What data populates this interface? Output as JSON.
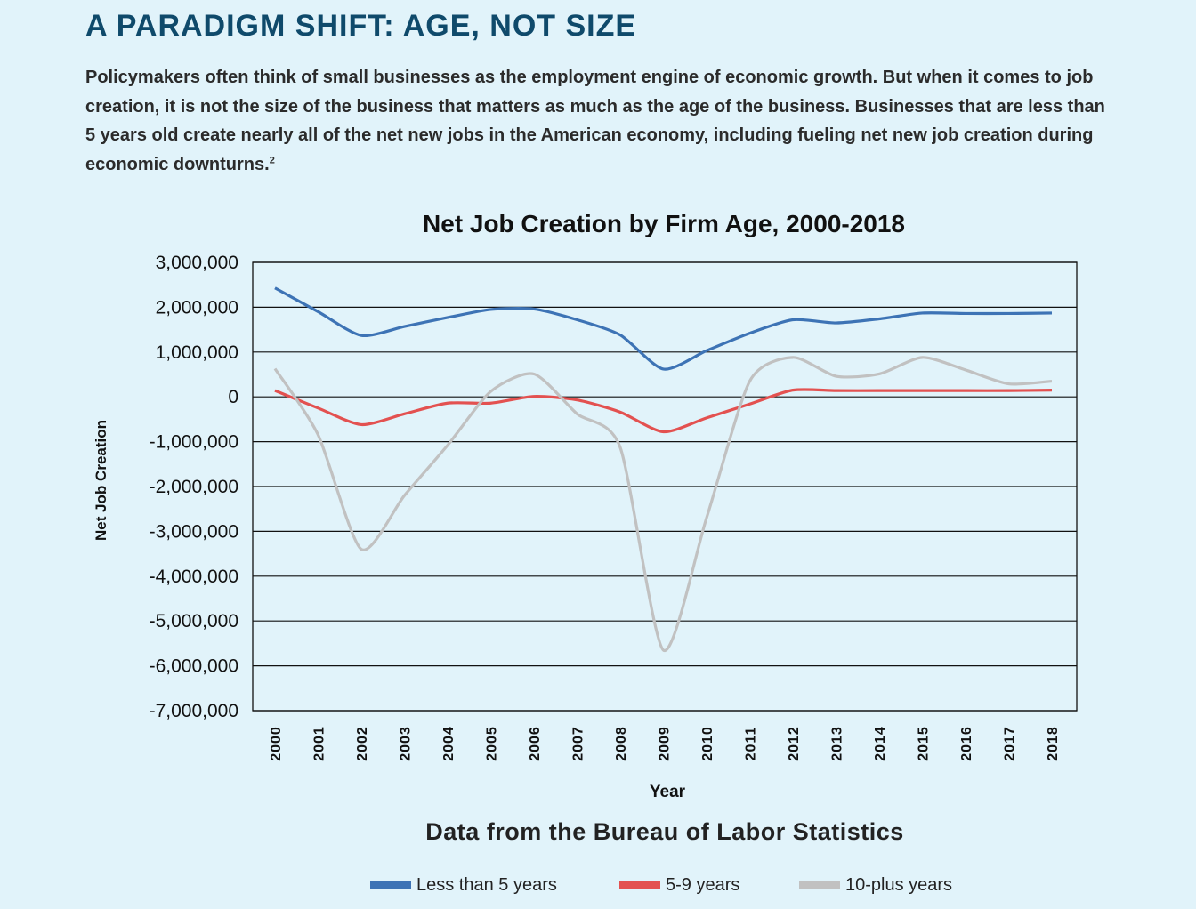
{
  "header": {
    "title": "A PARADIGM SHIFT: AGE, NOT SIZE",
    "intro": "Policymakers often think of small businesses as the employment engine of economic growth. But when it comes to job creation, it is not the size of the business that matters as much as the age of the business. Businesses that are less than 5 years old create nearly all of the net new jobs in the American economy, including fueling net new job creation during economic downturns.",
    "footnote": "2"
  },
  "chart_data": {
    "type": "line",
    "title": "Net Job Creation by Firm Age, 2000-2018",
    "xlabel": "Year",
    "ylabel": "Net Job Creation",
    "x": [
      "2000",
      "2001",
      "2002",
      "2003",
      "2004",
      "2005",
      "2006",
      "2007",
      "2008",
      "2009",
      "2010",
      "2011",
      "2012",
      "2013",
      "2014",
      "2015",
      "2016",
      "2017",
      "2018"
    ],
    "ylim": [
      -7000000,
      3000000
    ],
    "yticks": [
      3000000,
      2000000,
      1000000,
      0,
      -1000000,
      -2000000,
      -3000000,
      -4000000,
      -5000000,
      -6000000,
      -7000000
    ],
    "ytick_labels": [
      "3,000,000",
      "2,000,000",
      "1,000,000",
      "0",
      "-1,000,000",
      "-2,000,000",
      "-3,000,000",
      "-4,000,000",
      "-5,000,000",
      "-6,000,000",
      "-7,000,000"
    ],
    "grid": "horizontal",
    "legend_position": "bottom",
    "series": [
      {
        "name": "Less than 5 years",
        "color": "#3d73b5",
        "values": [
          2430000,
          1900000,
          1370000,
          1570000,
          1770000,
          1950000,
          1960000,
          1720000,
          1380000,
          620000,
          1030000,
          1420000,
          1720000,
          1650000,
          1740000,
          1870000,
          1860000,
          1860000,
          1870000
        ]
      },
      {
        "name": "5-9 years",
        "color": "#e35150",
        "values": [
          140000,
          -250000,
          -620000,
          -380000,
          -140000,
          -140000,
          10000,
          -70000,
          -340000,
          -780000,
          -470000,
          -160000,
          150000,
          140000,
          140000,
          140000,
          140000,
          140000,
          150000
        ]
      },
      {
        "name": "10-plus years",
        "color": "#c1c1c1",
        "values": [
          630000,
          -850000,
          -3400000,
          -2200000,
          -1080000,
          120000,
          510000,
          -380000,
          -1130000,
          -5650000,
          -2700000,
          350000,
          880000,
          460000,
          510000,
          880000,
          600000,
          290000,
          350000
        ]
      }
    ]
  },
  "source_note": "Data from the Bureau of Labor Statistics"
}
